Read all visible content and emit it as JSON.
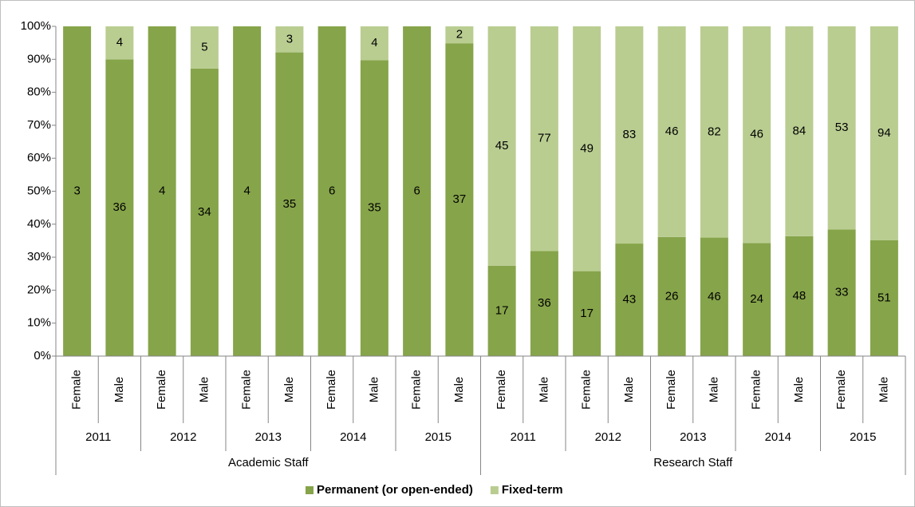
{
  "chart_data": {
    "type": "bar",
    "stacking": "percent",
    "groups": [
      {
        "label": "Academic Staff",
        "years": [
          {
            "label": "2011",
            "categories": [
              "Female",
              "Male"
            ]
          },
          {
            "label": "2012",
            "categories": [
              "Female",
              "Male"
            ]
          },
          {
            "label": "2013",
            "categories": [
              "Female",
              "Male"
            ]
          },
          {
            "label": "2014",
            "categories": [
              "Female",
              "Male"
            ]
          },
          {
            "label": "2015",
            "categories": [
              "Female",
              "Male"
            ]
          }
        ]
      },
      {
        "label": "Research Staff",
        "years": [
          {
            "label": "2011",
            "categories": [
              "Female",
              "Male"
            ]
          },
          {
            "label": "2012",
            "categories": [
              "Female",
              "Male"
            ]
          },
          {
            "label": "2013",
            "categories": [
              "Female",
              "Male"
            ]
          },
          {
            "label": "2014",
            "categories": [
              "Female",
              "Male"
            ]
          },
          {
            "label": "2015",
            "categories": [
              "Female",
              "Male"
            ]
          }
        ]
      }
    ],
    "series": [
      {
        "name": "Permanent (or open-ended)",
        "color": "#86a44a",
        "values": [
          3,
          36,
          4,
          34,
          4,
          35,
          6,
          35,
          6,
          37,
          17,
          36,
          17,
          43,
          26,
          46,
          24,
          48,
          33,
          51
        ]
      },
      {
        "name": "Fixed-term",
        "color": "#b9cd91",
        "values": [
          null,
          4,
          null,
          5,
          null,
          3,
          null,
          4,
          null,
          2,
          45,
          77,
          49,
          83,
          46,
          82,
          46,
          84,
          53,
          94
        ]
      }
    ],
    "ylim": [
      0,
      100
    ],
    "yticks": [
      {
        "value": 0,
        "label": "0%"
      },
      {
        "value": 10,
        "label": "10%"
      },
      {
        "value": 20,
        "label": "20%"
      },
      {
        "value": 30,
        "label": "30%"
      },
      {
        "value": 40,
        "label": "40%"
      },
      {
        "value": 50,
        "label": "50%"
      },
      {
        "value": 60,
        "label": "60%"
      },
      {
        "value": 70,
        "label": "70%"
      },
      {
        "value": 80,
        "label": "80%"
      },
      {
        "value": 90,
        "label": "90%"
      },
      {
        "value": 100,
        "label": "100%"
      }
    ],
    "legend": "bottom"
  }
}
